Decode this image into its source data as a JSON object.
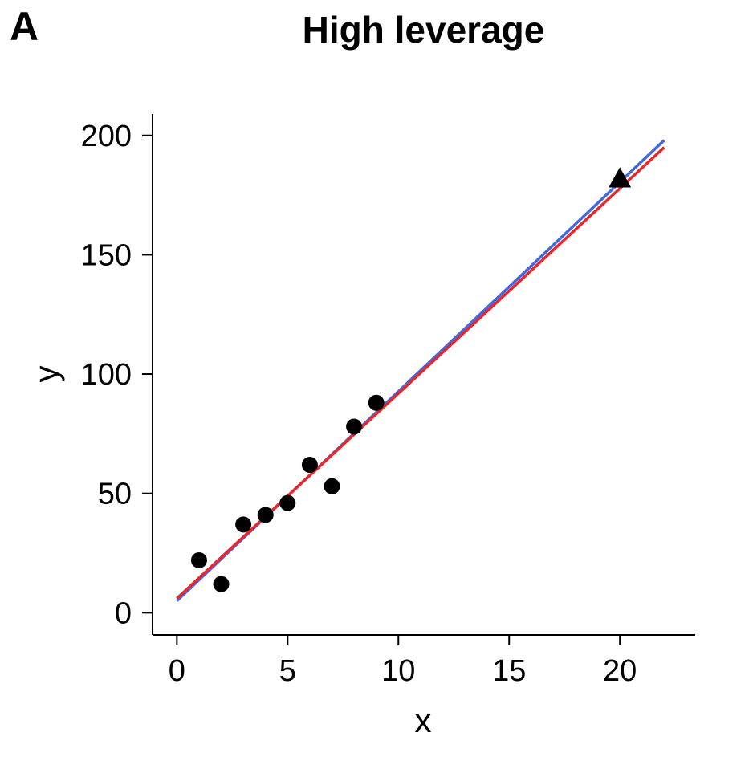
{
  "panel_label": "A",
  "chart_data": {
    "type": "scatter",
    "title": "High leverage",
    "xlabel": "x",
    "ylabel": "y",
    "xlim": [
      -1.1,
      23.4
    ],
    "ylim": [
      -9.3,
      209
    ],
    "xticks": [
      0,
      5,
      10,
      15,
      20
    ],
    "yticks": [
      0,
      50,
      100,
      150,
      200
    ],
    "grid": false,
    "legend": "none",
    "points": {
      "marker": "circle",
      "color": "#000000",
      "x": [
        1,
        2,
        3,
        4,
        5,
        6,
        7,
        8,
        9
      ],
      "y": [
        22,
        12,
        37,
        41,
        46,
        62,
        53,
        78,
        88
      ]
    },
    "high_leverage_point": {
      "marker": "triangle",
      "color": "#000000",
      "x": 20,
      "y": 182
    },
    "fit_lines": [
      {
        "color": "#4169e1",
        "x": [
          0,
          22
        ],
        "y": [
          5,
          198
        ]
      },
      {
        "color": "#e8262c",
        "x": [
          0,
          22
        ],
        "y": [
          6,
          195
        ]
      }
    ]
  }
}
